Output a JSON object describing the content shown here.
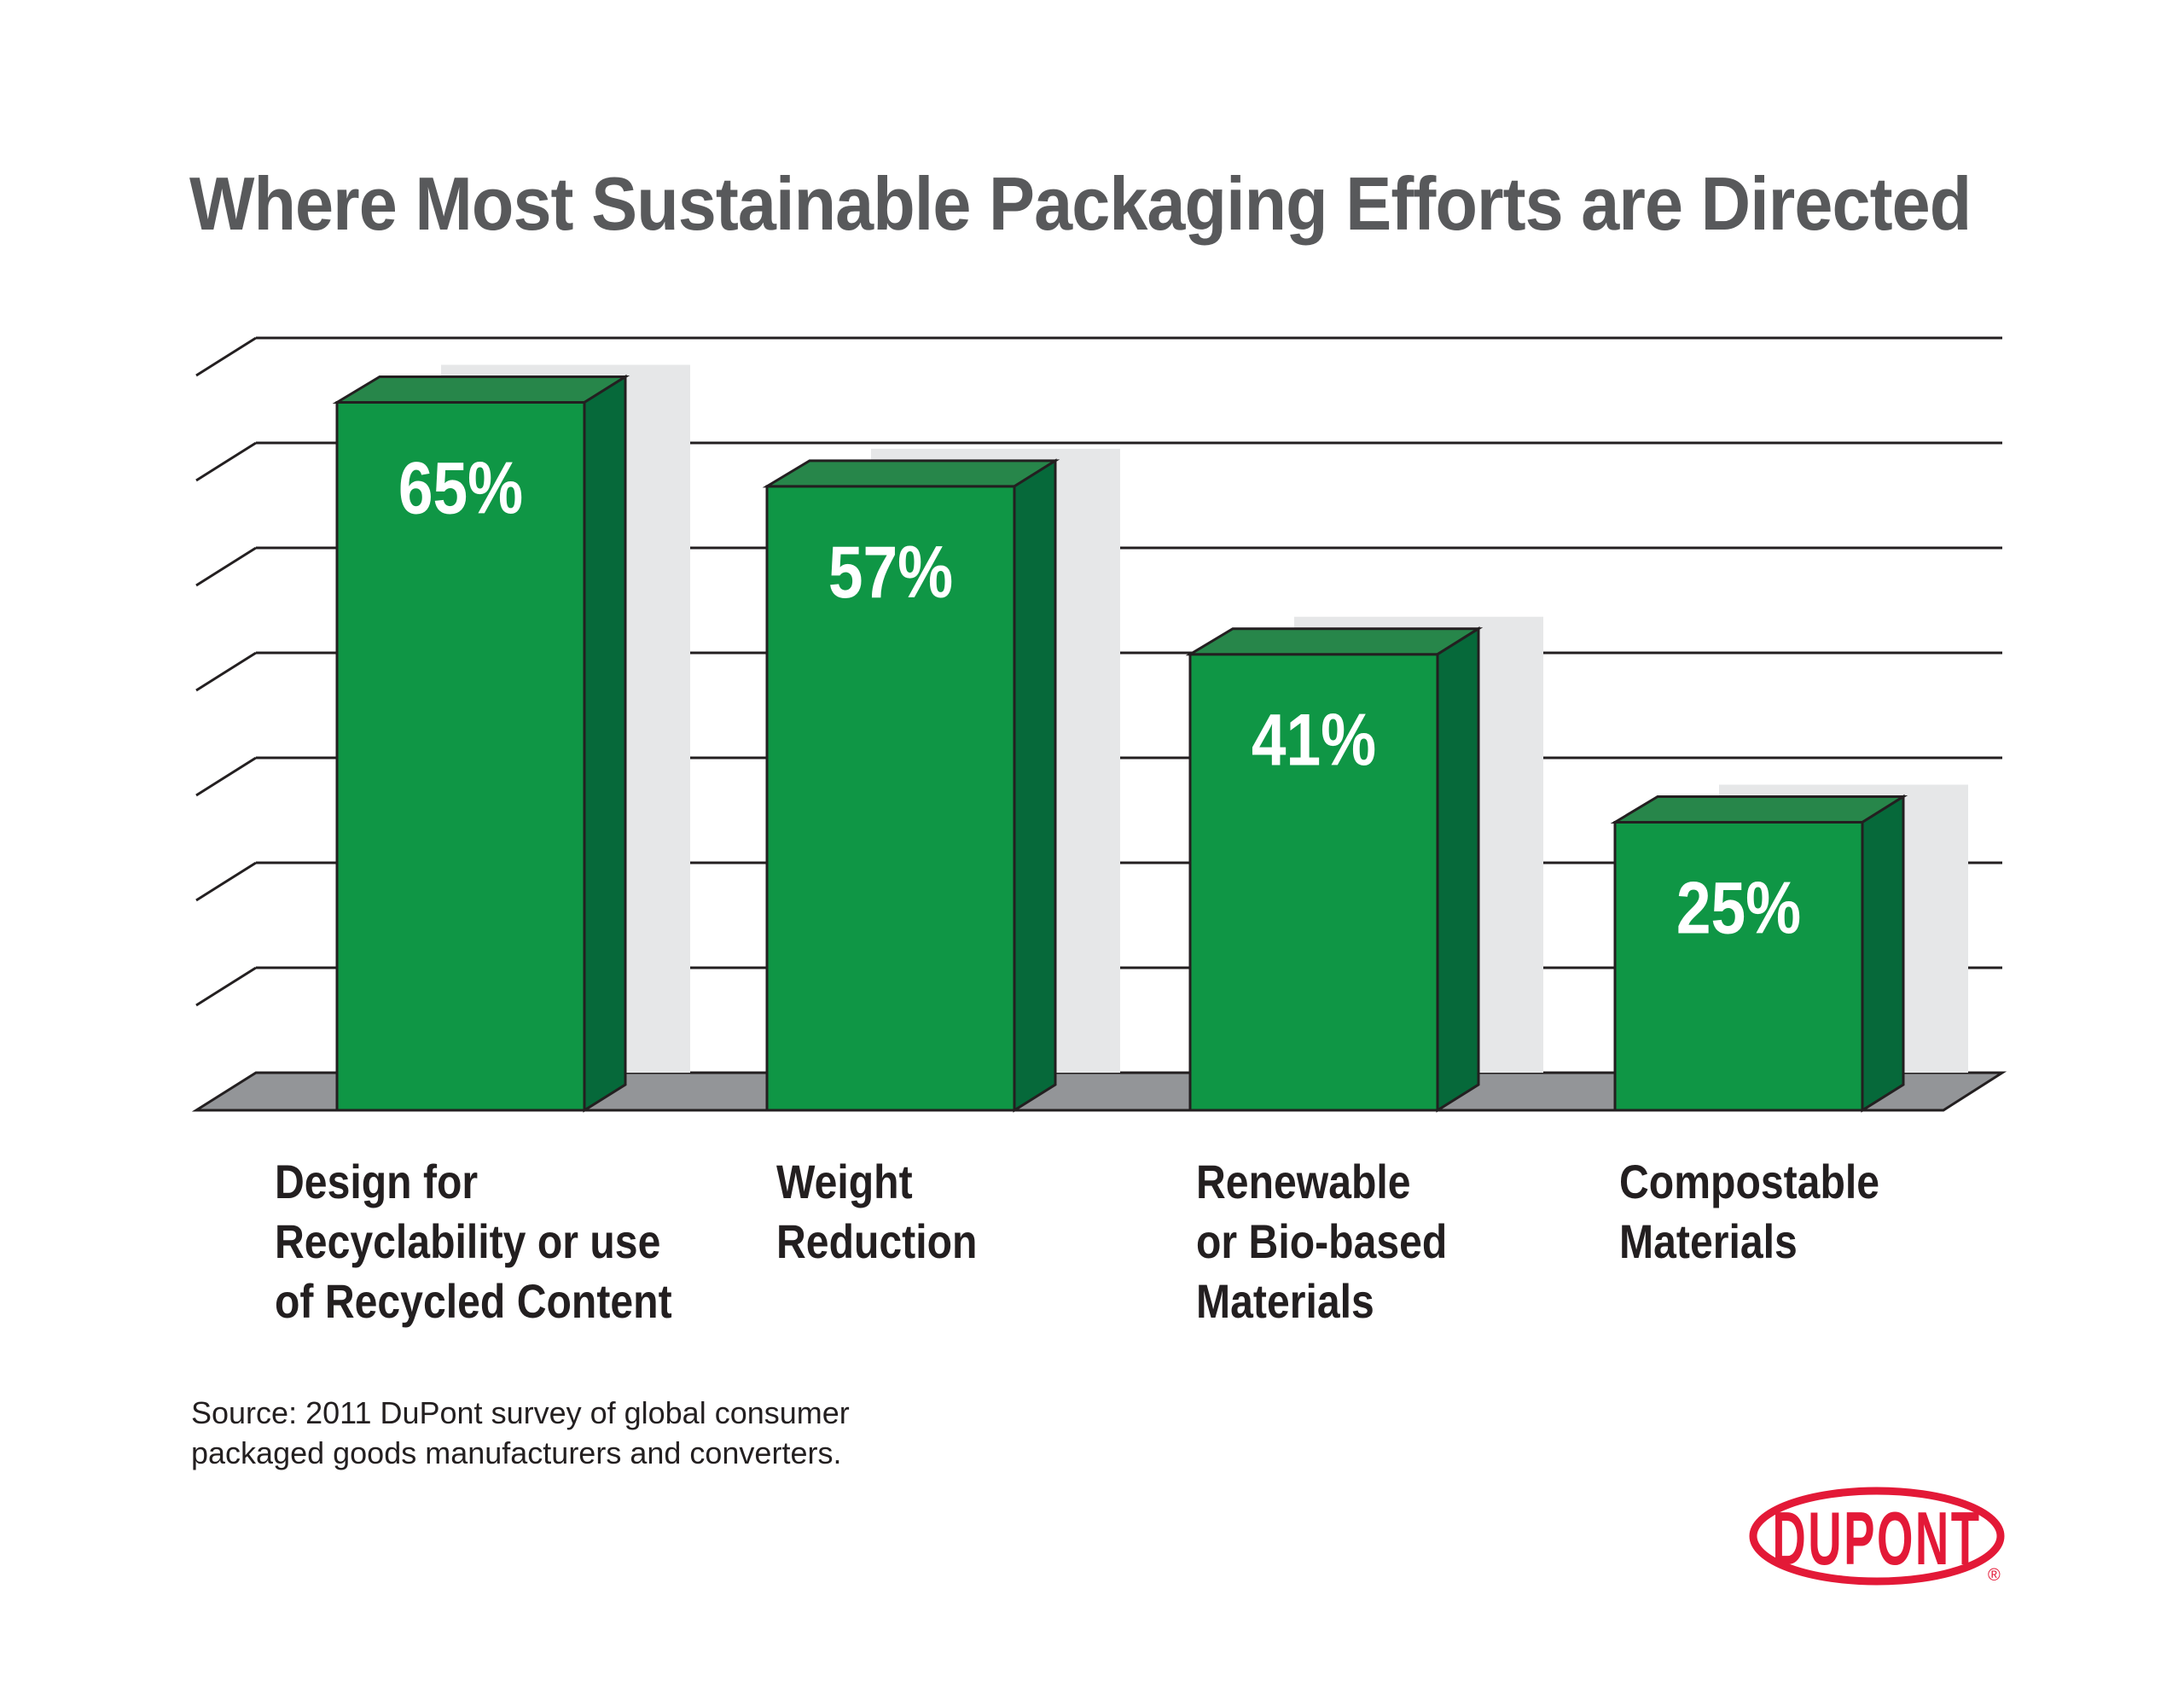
{
  "chart_data": {
    "type": "bar",
    "title": "Where Most Sustainable Packaging Efforts are Directed",
    "categories": [
      [
        "Design for",
        "Recyclability or use",
        "of Recycled Content"
      ],
      [
        "Weight",
        "Reduction"
      ],
      [
        "Renewable",
        "or Bio-based",
        "Materials"
      ],
      [
        "Compostable",
        "Materials"
      ]
    ],
    "values": [
      65,
      57,
      41,
      25
    ],
    "data_labels": [
      "65%",
      "57%",
      "41%",
      "25%"
    ],
    "xlabel": "",
    "ylabel": "",
    "ylim": [
      0,
      70
    ],
    "grid": true,
    "colors": {
      "front": "#0f9645",
      "top": "#27864a",
      "side": "#06693a",
      "shadow": "#e6e7e8",
      "floor": "#939598",
      "line": "#231f20"
    }
  },
  "source": [
    "Source: 2011 DuPont survey of global consumer",
    "packaged goods manufacturers and converters."
  ],
  "logo": {
    "text": "DUPONT",
    "color": "#e31937"
  }
}
